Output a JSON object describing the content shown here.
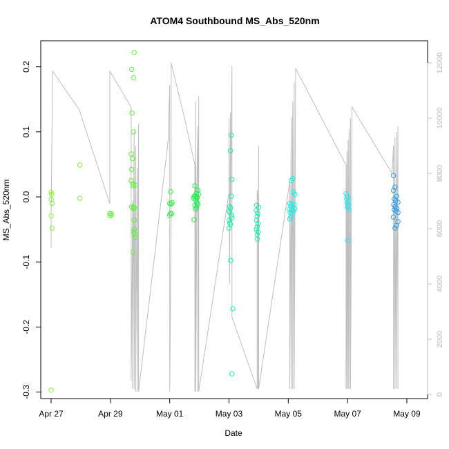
{
  "chart_data": {
    "type": "scatter",
    "title": "ATOM4 Southbound MS_Abs_520nm",
    "xlabel": "Date",
    "ylabel": "MS_Abs_520nm",
    "xlim": [
      -0.35,
      12.7
    ],
    "ylim": [
      -0.31,
      0.24
    ],
    "y2lim": [
      -150,
      12800
    ],
    "x_tick_labels": [
      "Apr 27",
      "Apr 29",
      "May 01",
      "May 03",
      "May 05",
      "May 07",
      "May 09"
    ],
    "x_tick_values": [
      0,
      2,
      4,
      6,
      8,
      10,
      12
    ],
    "y_ticks": [
      -0.3,
      -0.2,
      -0.1,
      0.0,
      0.1,
      0.2
    ],
    "y_tick_labels": [
      "-0.3",
      "-0.2",
      "-0.1",
      "0.0",
      "0.1",
      "0.2"
    ],
    "y2_ticks": [
      0,
      2000,
      4000,
      6000,
      8000,
      10000,
      12000
    ],
    "y2_tick_labels": [
      "0",
      "2000",
      "4000",
      "6000",
      "8000",
      "10000",
      "12000"
    ],
    "secondary_axis_color": "#bebebe",
    "box": true,
    "grid": false,
    "series": [
      {
        "marker": "open-circle",
        "points": [
          {
            "x": 0.0,
            "y": 0.007,
            "color": "#86ee3c"
          },
          {
            "x": 0.02,
            "y": 0.004,
            "color": "#86ee3c"
          },
          {
            "x": 0.0,
            "y": -0.004,
            "color": "#86ee3c"
          },
          {
            "x": 0.03,
            "y": -0.01,
            "color": "#86ee3c"
          },
          {
            "x": 0.0,
            "y": -0.029,
            "color": "#86ee3c"
          },
          {
            "x": 0.03,
            "y": -0.048,
            "color": "#86ee3c"
          },
          {
            "x": 0.0,
            "y": -0.297,
            "color": "#86ee3c"
          },
          {
            "x": 0.97,
            "y": 0.049,
            "color": "#80ef3a"
          },
          {
            "x": 0.97,
            "y": -0.002,
            "color": "#80ef3a"
          },
          {
            "x": 1.98,
            "y": -0.025,
            "color": "#6cf03a"
          },
          {
            "x": 2.03,
            "y": -0.026,
            "color": "#6cf03a"
          },
          {
            "x": 1.98,
            "y": -0.029,
            "color": "#6cf03a"
          },
          {
            "x": 2.03,
            "y": -0.028,
            "color": "#6cf03a"
          },
          {
            "x": 2.8,
            "y": 0.222,
            "color": "#5cf23a"
          },
          {
            "x": 2.72,
            "y": 0.196,
            "color": "#5cf23a"
          },
          {
            "x": 2.78,
            "y": 0.183,
            "color": "#5cf23a"
          },
          {
            "x": 2.73,
            "y": 0.129,
            "color": "#5cf23a"
          },
          {
            "x": 2.78,
            "y": 0.1,
            "color": "#5cf23a"
          },
          {
            "x": 2.7,
            "y": 0.066,
            "color": "#5cf23a"
          },
          {
            "x": 2.75,
            "y": 0.059,
            "color": "#5cf23a"
          },
          {
            "x": 2.72,
            "y": 0.042,
            "color": "#5cf23a"
          },
          {
            "x": 2.7,
            "y": 0.025,
            "color": "#5cf23a"
          },
          {
            "x": 2.76,
            "y": 0.02,
            "color": "#5cf23a"
          },
          {
            "x": 2.83,
            "y": 0.018,
            "color": "#5cf23a"
          },
          {
            "x": 2.76,
            "y": 0.017,
            "color": "#5cf23a"
          },
          {
            "x": 2.72,
            "y": -0.015,
            "color": "#5cf23a"
          },
          {
            "x": 2.78,
            "y": -0.016,
            "color": "#5cf23a"
          },
          {
            "x": 2.8,
            "y": -0.017,
            "color": "#5cf23a"
          },
          {
            "x": 2.77,
            "y": -0.018,
            "color": "#5cf23a"
          },
          {
            "x": 2.8,
            "y": -0.036,
            "color": "#5cf23a"
          },
          {
            "x": 2.8,
            "y": -0.05,
            "color": "#5cf23a"
          },
          {
            "x": 2.78,
            "y": -0.054,
            "color": "#5cf23a"
          },
          {
            "x": 2.82,
            "y": -0.057,
            "color": "#5cf23a"
          },
          {
            "x": 2.84,
            "y": -0.062,
            "color": "#5cf23a"
          },
          {
            "x": 2.76,
            "y": -0.085,
            "color": "#5cf23a"
          },
          {
            "x": 4.03,
            "y": 0.008,
            "color": "#2ef23c"
          },
          {
            "x": 4.0,
            "y": -0.01,
            "color": "#2ef23c"
          },
          {
            "x": 4.05,
            "y": -0.011,
            "color": "#2ef23c"
          },
          {
            "x": 4.08,
            "y": -0.009,
            "color": "#2ef23c"
          },
          {
            "x": 4.03,
            "y": -0.025,
            "color": "#2ef23c"
          },
          {
            "x": 4.06,
            "y": -0.026,
            "color": "#2ef23c"
          },
          {
            "x": 4.0,
            "y": -0.028,
            "color": "#2ef23c"
          },
          {
            "x": 4.85,
            "y": 0.017,
            "color": "#1df04c"
          },
          {
            "x": 4.95,
            "y": 0.01,
            "color": "#1df04c"
          },
          {
            "x": 4.9,
            "y": 0.006,
            "color": "#1df04c"
          },
          {
            "x": 4.97,
            "y": 0.004,
            "color": "#1df04c"
          },
          {
            "x": 4.82,
            "y": 0.001,
            "color": "#1df04c"
          },
          {
            "x": 4.86,
            "y": 0.001,
            "color": "#1df04c"
          },
          {
            "x": 4.89,
            "y": 0.0,
            "color": "#1df04c"
          },
          {
            "x": 4.93,
            "y": -0.001,
            "color": "#1df04c"
          },
          {
            "x": 4.8,
            "y": -0.002,
            "color": "#1df04c"
          },
          {
            "x": 4.88,
            "y": -0.005,
            "color": "#1df04c"
          },
          {
            "x": 4.92,
            "y": -0.009,
            "color": "#1df04c"
          },
          {
            "x": 4.95,
            "y": -0.012,
            "color": "#1df04c"
          },
          {
            "x": 4.85,
            "y": -0.013,
            "color": "#1df04c"
          },
          {
            "x": 4.9,
            "y": -0.016,
            "color": "#1df04c"
          },
          {
            "x": 4.87,
            "y": -0.019,
            "color": "#1df04c"
          },
          {
            "x": 4.82,
            "y": -0.035,
            "color": "#1df04c"
          },
          {
            "x": 6.08,
            "y": 0.095,
            "color": "#1ceea0"
          },
          {
            "x": 6.05,
            "y": 0.071,
            "color": "#1ceea0"
          },
          {
            "x": 6.1,
            "y": 0.027,
            "color": "#1ceea0"
          },
          {
            "x": 6.08,
            "y": 0.001,
            "color": "#1ceea0"
          },
          {
            "x": 6.02,
            "y": -0.015,
            "color": "#1ceea0"
          },
          {
            "x": 6.06,
            "y": -0.017,
            "color": "#1ceea0"
          },
          {
            "x": 6.0,
            "y": -0.022,
            "color": "#1ceea0"
          },
          {
            "x": 6.03,
            "y": -0.024,
            "color": "#1ceea0"
          },
          {
            "x": 6.08,
            "y": -0.028,
            "color": "#1ceea0"
          },
          {
            "x": 6.1,
            "y": -0.032,
            "color": "#1ceea0"
          },
          {
            "x": 6.01,
            "y": -0.036,
            "color": "#1ceea0"
          },
          {
            "x": 6.03,
            "y": -0.04,
            "color": "#1ceea0"
          },
          {
            "x": 6.05,
            "y": -0.042,
            "color": "#1ceea0"
          },
          {
            "x": 6.0,
            "y": -0.048,
            "color": "#1ceea0"
          },
          {
            "x": 6.06,
            "y": -0.098,
            "color": "#1ceea0"
          },
          {
            "x": 6.13,
            "y": -0.172,
            "color": "#1ceea0"
          },
          {
            "x": 6.1,
            "y": -0.272,
            "color": "#1ceea0"
          },
          {
            "x": 6.93,
            "y": -0.013,
            "color": "#1aeab0"
          },
          {
            "x": 7.0,
            "y": -0.016,
            "color": "#1aeab0"
          },
          {
            "x": 6.92,
            "y": -0.021,
            "color": "#1aeab0"
          },
          {
            "x": 6.97,
            "y": -0.025,
            "color": "#1aeab0"
          },
          {
            "x": 6.95,
            "y": -0.03,
            "color": "#1aeab0"
          },
          {
            "x": 6.93,
            "y": -0.036,
            "color": "#1aeab0"
          },
          {
            "x": 6.98,
            "y": -0.041,
            "color": "#1aeab0"
          },
          {
            "x": 6.95,
            "y": -0.046,
            "color": "#1aeab0"
          },
          {
            "x": 6.93,
            "y": -0.05,
            "color": "#1aeab0"
          },
          {
            "x": 6.98,
            "y": -0.054,
            "color": "#1aeab0"
          },
          {
            "x": 6.95,
            "y": -0.058,
            "color": "#1aeab0"
          },
          {
            "x": 6.96,
            "y": -0.065,
            "color": "#1aeab0"
          },
          {
            "x": 8.15,
            "y": 0.028,
            "color": "#22ede6"
          },
          {
            "x": 8.1,
            "y": 0.025,
            "color": "#22ede6"
          },
          {
            "x": 8.17,
            "y": 0.007,
            "color": "#22ede6"
          },
          {
            "x": 8.22,
            "y": 0.004,
            "color": "#22ede6"
          },
          {
            "x": 8.05,
            "y": -0.01,
            "color": "#22ede6"
          },
          {
            "x": 8.12,
            "y": -0.011,
            "color": "#22ede6"
          },
          {
            "x": 8.2,
            "y": -0.012,
            "color": "#22ede6"
          },
          {
            "x": 8.08,
            "y": -0.014,
            "color": "#22ede6"
          },
          {
            "x": 8.15,
            "y": -0.016,
            "color": "#22ede6"
          },
          {
            "x": 8.22,
            "y": -0.018,
            "color": "#22ede6"
          },
          {
            "x": 8.03,
            "y": -0.019,
            "color": "#22ede6"
          },
          {
            "x": 8.1,
            "y": -0.02,
            "color": "#22ede6"
          },
          {
            "x": 8.18,
            "y": -0.022,
            "color": "#22ede6"
          },
          {
            "x": 8.06,
            "y": -0.024,
            "color": "#22ede6"
          },
          {
            "x": 8.13,
            "y": -0.026,
            "color": "#22ede6"
          },
          {
            "x": 8.08,
            "y": -0.031,
            "color": "#22ede6"
          },
          {
            "x": 8.05,
            "y": -0.034,
            "color": "#22ede6"
          },
          {
            "x": 9.95,
            "y": 0.005,
            "color": "#24e6f0"
          },
          {
            "x": 9.98,
            "y": 0.002,
            "color": "#24e6f0"
          },
          {
            "x": 10.0,
            "y": -0.001,
            "color": "#24e6f0"
          },
          {
            "x": 9.97,
            "y": -0.004,
            "color": "#24e6f0"
          },
          {
            "x": 10.02,
            "y": -0.007,
            "color": "#24e6f0"
          },
          {
            "x": 9.99,
            "y": -0.01,
            "color": "#24e6f0"
          },
          {
            "x": 10.03,
            "y": -0.013,
            "color": "#24e6f0"
          },
          {
            "x": 10.0,
            "y": -0.016,
            "color": "#24e6f0"
          },
          {
            "x": 10.04,
            "y": -0.02,
            "color": "#24e6f0"
          },
          {
            "x": 10.0,
            "y": -0.067,
            "color": "#24e6f0"
          },
          {
            "x": 11.55,
            "y": 0.033,
            "color": "#2a9ae8"
          },
          {
            "x": 11.6,
            "y": 0.015,
            "color": "#2a9ae8"
          },
          {
            "x": 11.55,
            "y": 0.01,
            "color": "#2a9ae8"
          },
          {
            "x": 11.65,
            "y": 0.001,
            "color": "#2a9ae8"
          },
          {
            "x": 11.58,
            "y": -0.003,
            "color": "#2a9ae8"
          },
          {
            "x": 11.62,
            "y": -0.006,
            "color": "#2a9ae8"
          },
          {
            "x": 11.7,
            "y": -0.008,
            "color": "#2a9ae8"
          },
          {
            "x": 11.56,
            "y": -0.012,
            "color": "#2a9ae8"
          },
          {
            "x": 11.6,
            "y": -0.015,
            "color": "#2a9ae8"
          },
          {
            "x": 11.66,
            "y": -0.018,
            "color": "#2a9ae8"
          },
          {
            "x": 11.58,
            "y": -0.02,
            "color": "#2a9ae8"
          },
          {
            "x": 11.63,
            "y": -0.022,
            "color": "#2a9ae8"
          },
          {
            "x": 11.7,
            "y": -0.024,
            "color": "#2a9ae8"
          },
          {
            "x": 11.55,
            "y": -0.031,
            "color": "#2a9ae8"
          },
          {
            "x": 11.7,
            "y": -0.038,
            "color": "#2a9ae8"
          },
          {
            "x": 11.65,
            "y": -0.044,
            "color": "#2a9ae8"
          },
          {
            "x": 11.6,
            "y": -0.048,
            "color": "#2a9ae8"
          }
        ]
      },
      {
        "axis": "secondary",
        "type": "line",
        "color": "#bebebe",
        "points": [
          [
            0.0,
            5300
          ],
          [
            0.0,
            6500
          ],
          [
            0.05,
            11700
          ],
          [
            0.95,
            10300
          ],
          [
            1.98,
            6900
          ],
          [
            1.98,
            11700
          ],
          [
            2.7,
            10400
          ],
          [
            2.7,
            500
          ],
          [
            2.75,
            7000
          ],
          [
            2.75,
            200
          ],
          [
            2.8,
            9500
          ],
          [
            2.8,
            200
          ],
          [
            2.83,
            6500
          ],
          [
            2.85,
            9000
          ],
          [
            2.85,
            100
          ],
          [
            2.9,
            8200
          ],
          [
            2.9,
            100
          ],
          [
            2.95,
            9800
          ],
          [
            2.95,
            100
          ],
          [
            3.95,
            9200
          ],
          [
            4.0,
            11200
          ],
          [
            4.0,
            100
          ],
          [
            4.05,
            6200
          ],
          [
            4.05,
            12000
          ],
          [
            4.5,
            10000
          ],
          [
            4.85,
            8300
          ],
          [
            4.85,
            100
          ],
          [
            4.88,
            10600
          ],
          [
            4.88,
            100
          ],
          [
            4.92,
            7800
          ],
          [
            4.95,
            9700
          ],
          [
            4.95,
            100
          ],
          [
            4.98,
            10800
          ],
          [
            4.98,
            100
          ],
          [
            6.0,
            7300
          ],
          [
            6.0,
            10000
          ],
          [
            6.02,
            4000
          ],
          [
            6.05,
            10200
          ],
          [
            6.05,
            6200
          ],
          [
            6.1,
            11900
          ],
          [
            6.1,
            2800
          ],
          [
            6.95,
            200
          ],
          [
            6.95,
            7400
          ],
          [
            6.98,
            7100
          ],
          [
            6.98,
            200
          ],
          [
            7.0,
            9000
          ],
          [
            7.0,
            200
          ],
          [
            8.05,
            7700
          ],
          [
            8.05,
            200
          ],
          [
            8.1,
            10000
          ],
          [
            8.1,
            200
          ],
          [
            8.15,
            10600
          ],
          [
            8.15,
            200
          ],
          [
            8.2,
            11300
          ],
          [
            8.2,
            200
          ],
          [
            8.25,
            11800
          ],
          [
            9.95,
            8300
          ],
          [
            9.95,
            200
          ],
          [
            9.98,
            8800
          ],
          [
            9.98,
            200
          ],
          [
            10.02,
            9200
          ],
          [
            10.02,
            200
          ],
          [
            10.05,
            9600
          ],
          [
            10.05,
            200
          ],
          [
            10.1,
            10000
          ],
          [
            10.1,
            200
          ],
          [
            10.15,
            10400
          ],
          [
            11.5,
            8000
          ],
          [
            11.55,
            9000
          ],
          [
            11.55,
            200
          ],
          [
            11.6,
            9300
          ],
          [
            11.6,
            200
          ],
          [
            11.65,
            9500
          ],
          [
            11.65,
            200
          ],
          [
            11.7,
            9700
          ],
          [
            11.7,
            200
          ]
        ]
      }
    ]
  }
}
